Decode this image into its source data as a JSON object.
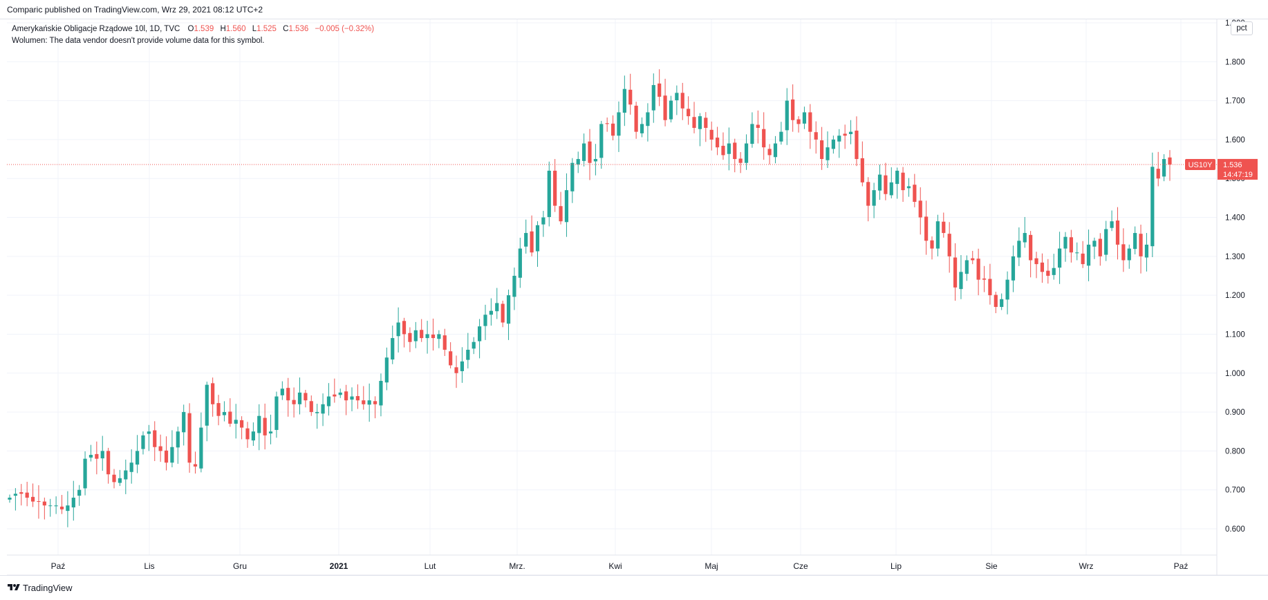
{
  "header": {
    "title": "Comparic published on TradingView.com, Wrz 29, 2021 08:12 UTC+2"
  },
  "legend": {
    "symbol_desc": "Amerykańskie Obligacje Rządowe 10l, 1D, TVC",
    "open_label": "O",
    "open": "1.539",
    "high_label": "H",
    "high": "1.560",
    "low_label": "L",
    "low": "1.525",
    "close_label": "C",
    "close": "1.536",
    "change": "−0.005 (−0.32%)",
    "volume_note": "Wolumen: The data vendor doesn't provide volume data for this symbol."
  },
  "price_axis": {
    "unit_badge": "pct",
    "last_price_label": "US10Y",
    "last_price_value": "1.536",
    "countdown": "14:47:19"
  },
  "footer": {
    "brand": "TradingView",
    "logo_icon": "tradingview-logo-icon"
  },
  "colors": {
    "up": "#26a69a",
    "down": "#ef5350",
    "grid": "#f0f3fa",
    "axis_text": "#131722"
  },
  "chart_data": {
    "type": "candlestick",
    "symbol": "US10Y",
    "ylim": [
      0.5,
      1.9
    ],
    "y_ticks": [
      "0.600",
      "0.700",
      "0.800",
      "0.900",
      "1.000",
      "1.100",
      "1.200",
      "1.300",
      "1.400",
      "1.500",
      "1.600",
      "1.700",
      "1.800",
      "1.900"
    ],
    "x_tick_labels": [
      "Paź",
      "Lis",
      "Gru",
      "2021",
      "Lut",
      "Mrz.",
      "Kwi",
      "Maj",
      "Cze",
      "Lip",
      "Sie",
      "Wrz",
      "Paź"
    ],
    "x_tick_bold": [
      false,
      false,
      false,
      true,
      false,
      false,
      false,
      false,
      false,
      false,
      false,
      false,
      false
    ],
    "last_price": 1.536,
    "close_series": [
      0.68,
      0.69,
      0.69,
      0.68,
      0.67,
      0.67,
      0.66,
      0.66,
      0.66,
      0.65,
      0.66,
      0.68,
      0.7,
      0.78,
      0.79,
      0.78,
      0.8,
      0.74,
      0.72,
      0.73,
      0.75,
      0.77,
      0.8,
      0.84,
      0.85,
      0.81,
      0.8,
      0.77,
      0.81,
      0.85,
      0.9,
      0.77,
      0.76,
      0.86,
      0.97,
      0.92,
      0.89,
      0.9,
      0.87,
      0.88,
      0.86,
      0.83,
      0.85,
      0.89,
      0.84,
      0.85,
      0.94,
      0.96,
      0.93,
      0.92,
      0.95,
      0.93,
      0.9,
      0.9,
      0.92,
      0.94,
      0.94,
      0.95,
      0.93,
      0.94,
      0.93,
      0.92,
      0.93,
      0.92,
      0.98,
      1.04,
      1.09,
      1.13,
      1.1,
      1.08,
      1.11,
      1.09,
      1.1,
      1.09,
      1.1,
      1.06,
      1.02,
      1.0,
      1.03,
      1.06,
      1.08,
      1.12,
      1.15,
      1.16,
      1.18,
      1.13,
      1.2,
      1.25,
      1.32,
      1.36,
      1.31,
      1.38,
      1.4,
      1.52,
      1.43,
      1.39,
      1.47,
      1.54,
      1.55,
      1.59,
      1.54,
      1.55,
      1.64,
      1.64,
      1.61,
      1.67,
      1.73,
      1.69,
      1.62,
      1.64,
      1.67,
      1.74,
      1.71,
      1.65,
      1.7,
      1.72,
      1.68,
      1.66,
      1.63,
      1.66,
      1.63,
      1.6,
      1.58,
      1.56,
      1.59,
      1.55,
      1.54,
      1.59,
      1.64,
      1.63,
      1.58,
      1.56,
      1.59,
      1.62,
      1.7,
      1.65,
      1.64,
      1.67,
      1.62,
      1.6,
      1.55,
      1.58,
      1.6,
      1.61,
      1.61,
      1.62,
      1.55,
      1.49,
      1.43,
      1.47,
      1.51,
      1.46,
      1.49,
      1.52,
      1.47,
      1.48,
      1.44,
      1.4,
      1.34,
      1.32,
      1.39,
      1.36,
      1.3,
      1.22,
      1.26,
      1.29,
      1.29,
      1.24,
      1.24,
      1.2,
      1.17,
      1.19,
      1.24,
      1.3,
      1.34,
      1.36,
      1.29,
      1.28,
      1.26,
      1.25,
      1.27,
      1.32,
      1.35,
      1.31,
      1.31,
      1.28,
      1.33,
      1.34,
      1.3,
      1.37,
      1.39,
      1.33,
      1.29,
      1.32,
      1.36,
      1.3,
      1.33,
      1.53,
      1.5,
      1.55,
      1.536
    ]
  }
}
